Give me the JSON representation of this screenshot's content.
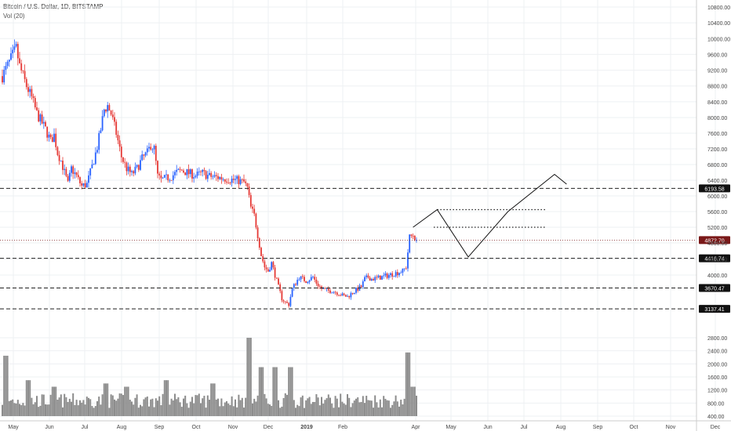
{
  "header": {
    "title": "Bitcoin / U.S. Dollar, 1D, BITSTAMP",
    "volume_label": "Vol (20)"
  },
  "colors": {
    "up": "#2962ff",
    "down": "#e53935",
    "volume": "#8c8c8c",
    "grid": "#eef0f3",
    "line": "#222222",
    "current": "#7a1818"
  },
  "chart_data": {
    "type": "candlestick",
    "title": "Bitcoin / U.S. Dollar, 1D, BITSTAMP",
    "xlabel": "",
    "ylabel": "",
    "ylim": [
      200,
      10900
    ],
    "y_ticks": [
      400,
      800,
      1200,
      1600,
      2000,
      2400,
      2800,
      4000,
      4400,
      4800,
      5200,
      5600,
      6000,
      6400,
      6800,
      7200,
      7600,
      8000,
      8400,
      8800,
      9200,
      9600,
      10000,
      10400,
      10800
    ],
    "x_ticks": [
      "May",
      "Jun",
      "Jul",
      "Aug",
      "Sep",
      "Oct",
      "Nov",
      "Dec",
      "2019",
      "Feb",
      "Apr",
      "May",
      "Jun",
      "Jul",
      "Aug",
      "Sep",
      "Oct",
      "Nov",
      "Dec"
    ],
    "grid": true,
    "price_path": [
      [
        0,
        9050
      ],
      [
        4,
        9400
      ],
      [
        8,
        9750
      ],
      [
        10,
        9300
      ],
      [
        14,
        8800
      ],
      [
        17,
        8500
      ],
      [
        20,
        8100
      ],
      [
        25,
        7700
      ],
      [
        28,
        7400
      ],
      [
        30,
        7550
      ],
      [
        32,
        7100
      ],
      [
        34,
        6900
      ],
      [
        36,
        6600
      ],
      [
        38,
        6300
      ],
      [
        40,
        6700
      ],
      [
        43,
        6500
      ],
      [
        46,
        6250
      ],
      [
        49,
        6300
      ],
      [
        52,
        6750
      ],
      [
        55,
        7250
      ],
      [
        57,
        7700
      ],
      [
        59,
        8200
      ],
      [
        61,
        8300
      ],
      [
        63,
        8100
      ],
      [
        66,
        7600
      ],
      [
        69,
        7000
      ],
      [
        72,
        6700
      ],
      [
        75,
        6550
      ],
      [
        78,
        6700
      ],
      [
        81,
        6950
      ],
      [
        84,
        7100
      ],
      [
        86,
        7300
      ],
      [
        88,
        7200
      ],
      [
        90,
        6500
      ],
      [
        92,
        6400
      ],
      [
        95,
        6450
      ],
      [
        98,
        6500
      ],
      [
        101,
        6600
      ],
      [
        104,
        6650
      ],
      [
        108,
        6580
      ],
      [
        112,
        6520
      ],
      [
        116,
        6580
      ],
      [
        120,
        6500
      ],
      [
        124,
        6480
      ],
      [
        128,
        6450
      ],
      [
        132,
        6420
      ],
      [
        136,
        6400
      ],
      [
        140,
        6350
      ],
      [
        142,
        6200
      ],
      [
        144,
        5700
      ],
      [
        146,
        5500
      ],
      [
        148,
        5000
      ],
      [
        150,
        4500
      ],
      [
        152,
        4200
      ],
      [
        154,
        4100
      ],
      [
        156,
        4300
      ],
      [
        158,
        4000
      ],
      [
        160,
        3700
      ],
      [
        162,
        3400
      ],
      [
        164,
        3300
      ],
      [
        166,
        3250
      ],
      [
        168,
        3650
      ],
      [
        170,
        3800
      ],
      [
        172,
        3950
      ],
      [
        174,
        3900
      ],
      [
        176,
        3850
      ],
      [
        178,
        3900
      ],
      [
        180,
        3950
      ],
      [
        182,
        3800
      ],
      [
        185,
        3650
      ],
      [
        188,
        3600
      ],
      [
        191,
        3600
      ],
      [
        194,
        3550
      ],
      [
        197,
        3480
      ],
      [
        200,
        3450
      ],
      [
        203,
        3550
      ],
      [
        206,
        3650
      ],
      [
        208,
        3700
      ],
      [
        210,
        3900
      ],
      [
        212,
        3950
      ],
      [
        214,
        3900
      ],
      [
        217,
        3920
      ],
      [
        220,
        3950
      ],
      [
        224,
        4000
      ],
      [
        228,
        4050
      ],
      [
        232,
        4100
      ],
      [
        234,
        4200
      ],
      [
        236,
        4950
      ],
      [
        238,
        5000
      ],
      [
        240,
        4872
      ]
    ],
    "volume_peaks": [
      [
        2,
        2250
      ],
      [
        15,
        1500
      ],
      [
        30,
        1300
      ],
      [
        60,
        1400
      ],
      [
        72,
        1300
      ],
      [
        95,
        1500
      ],
      [
        122,
        1400
      ],
      [
        143,
        2800
      ],
      [
        150,
        1900
      ],
      [
        158,
        1900
      ],
      [
        167,
        1900
      ],
      [
        235,
        2350
      ],
      [
        238,
        1300
      ]
    ],
    "levels": [
      {
        "value": 6193.58,
        "label": "6193.58",
        "style": "dashed"
      },
      {
        "value": 4416.74,
        "label": "4416.74",
        "style": "dashed"
      },
      {
        "value": 3670.47,
        "label": "3670.47",
        "style": "dashed"
      },
      {
        "value": 3137.41,
        "label": "3137.41",
        "style": "dashed"
      },
      {
        "value": 4872.7,
        "label": "4872.70",
        "style": "dotted",
        "current": true
      }
    ],
    "resistance_lines": [
      {
        "value": 5650,
        "from_day": 252,
        "to_day": 315
      },
      {
        "value": 5200,
        "from_day": 250,
        "to_day": 315
      }
    ],
    "projection": [
      [
        238,
        5200
      ],
      [
        252,
        5650
      ],
      [
        270,
        4450
      ],
      [
        293,
        5600
      ],
      [
        320,
        6550
      ],
      [
        327,
        6300
      ]
    ]
  }
}
